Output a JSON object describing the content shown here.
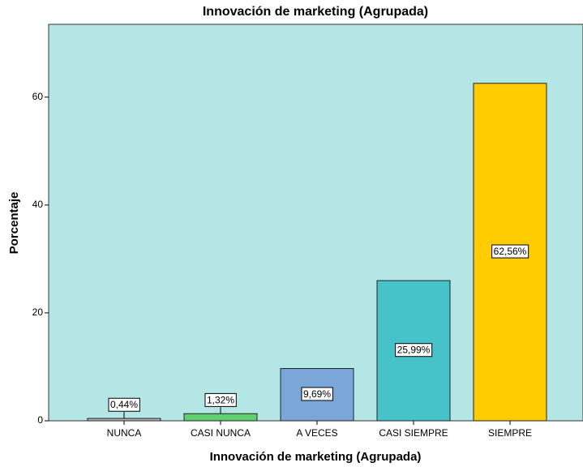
{
  "chart_data": {
    "type": "bar",
    "title": "Innovación de marketing (Agrupada)",
    "x_label": "Innovación de marketing (Agrupada)",
    "y_label": "Porcentaje",
    "categories": [
      "NUNCA",
      "CASI NUNCA",
      "A VECES",
      "CASI SIEMPRE",
      "SIEMPRE"
    ],
    "values": [
      0.44,
      1.32,
      9.69,
      25.99,
      62.56
    ],
    "value_labels": [
      "0,44%",
      "1,32%",
      "9,69%",
      "25,99%",
      "62,56%"
    ],
    "colors": [
      "#b5b5b5",
      "#5fd16e",
      "#7aa7d8",
      "#46c3c8",
      "#ffcc00"
    ],
    "background": "#b4e6e6",
    "ylim": [
      0,
      73.5
    ],
    "yticks": [
      0,
      20,
      40,
      60
    ],
    "grid": false
  }
}
